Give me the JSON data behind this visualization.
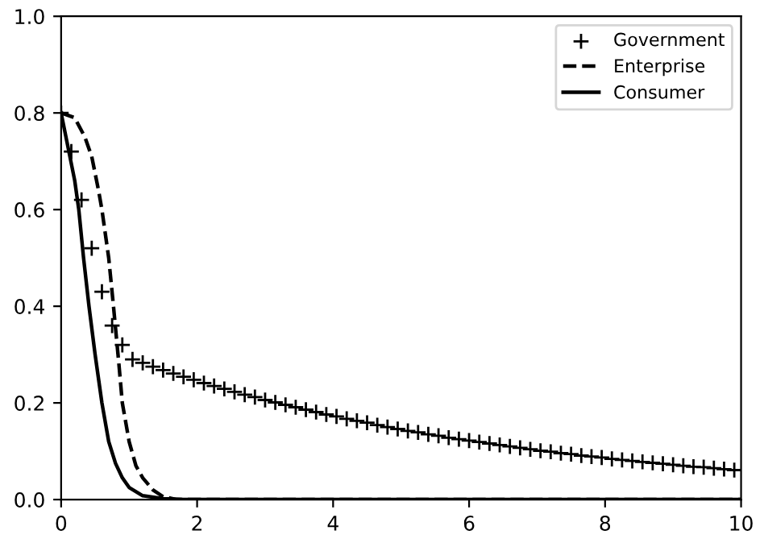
{
  "chart_data": {
    "type": "line",
    "xlim": [
      0,
      10
    ],
    "ylim": [
      0,
      1.0
    ],
    "xticks": [
      0,
      2,
      4,
      6,
      8,
      10
    ],
    "yticks": [
      {
        "value": 0,
        "label": "0.0"
      },
      {
        "value": 0.2,
        "label": "0.2"
      },
      {
        "value": 0.4,
        "label": "0.4"
      },
      {
        "value": 0.6,
        "label": "0.6"
      },
      {
        "value": 0.8,
        "label": "0.8"
      },
      {
        "value": 1.0,
        "label": "1.0"
      }
    ],
    "grid": false,
    "legend": "top right",
    "series": [
      {
        "name": "Government",
        "color": "#000000",
        "type": "scatter",
        "marker": "cross",
        "x": [
          0,
          0.15,
          0.3,
          0.45,
          0.6,
          0.75,
          0.9,
          1.05,
          1.2,
          1.35,
          1.5,
          1.65,
          1.8,
          1.95,
          2.1,
          2.25,
          2.4,
          2.55,
          2.7,
          2.85,
          3.0,
          3.15,
          3.3,
          3.45,
          3.6,
          3.75,
          3.9,
          4.05,
          4.2,
          4.35,
          4.5,
          4.65,
          4.8,
          4.95,
          5.1,
          5.25,
          5.4,
          5.55,
          5.7,
          5.85,
          6.0,
          6.15,
          6.3,
          6.45,
          6.6,
          6.75,
          6.9,
          7.05,
          7.2,
          7.35,
          7.5,
          7.65,
          7.8,
          7.95,
          8.1,
          8.25,
          8.4,
          8.55,
          8.7,
          8.85,
          9.0,
          9.15,
          9.3,
          9.45,
          9.6,
          9.75,
          9.9
        ],
        "values": [
          0.8,
          0.72,
          0.62,
          0.52,
          0.43,
          0.36,
          0.32,
          0.29,
          0.283,
          0.275,
          0.268,
          0.261,
          0.254,
          0.248,
          0.241,
          0.235,
          0.229,
          0.223,
          0.217,
          0.212,
          0.206,
          0.201,
          0.196,
          0.191,
          0.186,
          0.181,
          0.176,
          0.172,
          0.167,
          0.163,
          0.159,
          0.154,
          0.15,
          0.146,
          0.142,
          0.139,
          0.135,
          0.132,
          0.128,
          0.125,
          0.122,
          0.119,
          0.116,
          0.113,
          0.11,
          0.107,
          0.104,
          0.101,
          0.099,
          0.096,
          0.094,
          0.091,
          0.089,
          0.087,
          0.084,
          0.082,
          0.08,
          0.078,
          0.076,
          0.074,
          0.072,
          0.07,
          0.068,
          0.067,
          0.065,
          0.063,
          0.061
        ]
      },
      {
        "name": "Enterprise",
        "color": "#000000",
        "line_style": "dashed",
        "x": [
          0,
          0.2,
          0.35,
          0.45,
          0.55,
          0.6,
          0.7,
          0.77,
          0.85,
          0.9,
          1.0,
          1.1,
          1.2,
          1.35,
          1.5,
          1.7,
          10
        ],
        "values": [
          0.8,
          0.79,
          0.75,
          0.71,
          0.64,
          0.6,
          0.5,
          0.4,
          0.28,
          0.2,
          0.12,
          0.07,
          0.045,
          0.02,
          0.006,
          0,
          0
        ]
      },
      {
        "name": "Consumer",
        "color": "#000000",
        "line_style": "solid",
        "x": [
          0,
          0.1,
          0.2,
          0.26,
          0.33,
          0.41,
          0.5,
          0.6,
          0.7,
          0.8,
          0.9,
          1.0,
          1.2,
          1.5,
          1.8,
          10
        ],
        "values": [
          0.8,
          0.73,
          0.66,
          0.6,
          0.5,
          0.4,
          0.3,
          0.2,
          0.12,
          0.075,
          0.045,
          0.025,
          0.008,
          0.002,
          0,
          0
        ]
      }
    ]
  }
}
